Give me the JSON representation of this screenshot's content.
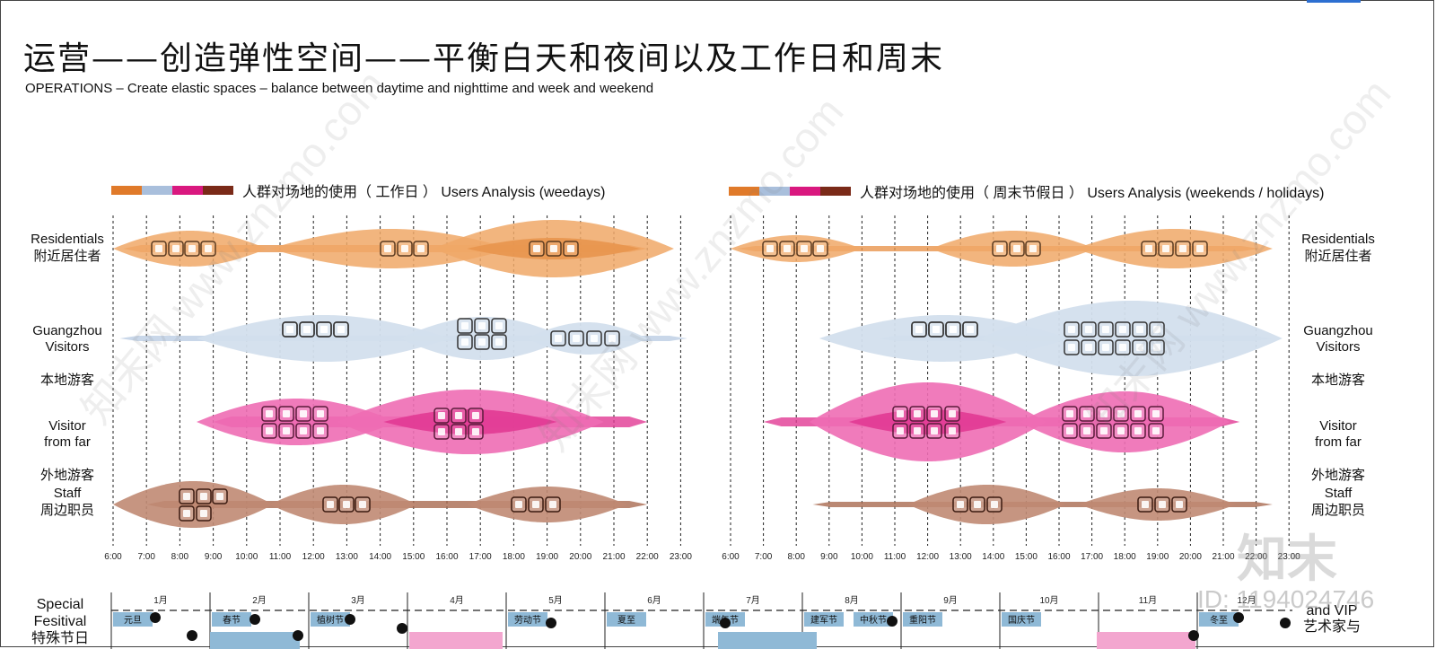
{
  "title": "运营——创造弹性空间——平衡白天和夜间以及工作日和周末",
  "subtitle": "OPERATIONS – Create elastic spaces – balance between daytime and nighttime and week and weekend",
  "legend_colors": [
    "#e07a2a",
    "#a9bfdc",
    "#d9187f",
    "#7a2a18"
  ],
  "legend_weekdays": "人群对场地的使用（ 工作日 ） Users Analysis (weedays)",
  "legend_weekends": "人群对场地的使用（ 周末节假日 ） Users Analysis (weekends / holidays)",
  "rows": [
    {
      "en": "Residentials",
      "cn": "附近居住者",
      "color": "#f0a867",
      "dark": "#e8954e"
    },
    {
      "en": "Guangzhou\nVisitors",
      "cn": "本地游客",
      "color": "#d3dfed",
      "dark": "#bccde4"
    },
    {
      "en": "Visitor\nfrom far",
      "cn": "外地游客",
      "color": "#ee6db4",
      "dark": "#e13a94"
    },
    {
      "en": "Staff",
      "cn": "周边职员",
      "color": "#c08a73",
      "dark": "#a96a50"
    }
  ],
  "time_ticks": [
    "6:00",
    "7:00",
    "8:00",
    "9:00",
    "10:00",
    "11:00",
    "12:00",
    "13:00",
    "14:00",
    "15:00",
    "16:00",
    "17:00",
    "18:00",
    "19:00",
    "20:00",
    "21:00",
    "22:00",
    "23:00"
  ],
  "special_label": "Special\nFesitival\n特殊节日",
  "months": [
    "1月",
    "2月",
    "3月",
    "4月",
    "5月",
    "6月",
    "7月",
    "8月",
    "9月",
    "10月",
    "11月",
    "12月"
  ],
  "festivals": [
    {
      "name": "元旦",
      "month": 0
    },
    {
      "name": "春节",
      "month": 1
    },
    {
      "name": "植树节",
      "month": 2
    },
    {
      "name": "劳动节",
      "month": 4
    },
    {
      "name": "夏至",
      "month": 5
    },
    {
      "name": "端午节",
      "month": 6
    },
    {
      "name": "建军节",
      "month": 7
    },
    {
      "name": "中秋节",
      "month": 7.5
    },
    {
      "name": "重阳节",
      "month": 8
    },
    {
      "name": "国庆节",
      "month": 9
    },
    {
      "name": "冬至",
      "month": 11
    }
  ],
  "bottom_right_label": "and VIP\n艺术家与",
  "watermark_brand": "知末",
  "watermark_id": "ID: 1194024746"
}
